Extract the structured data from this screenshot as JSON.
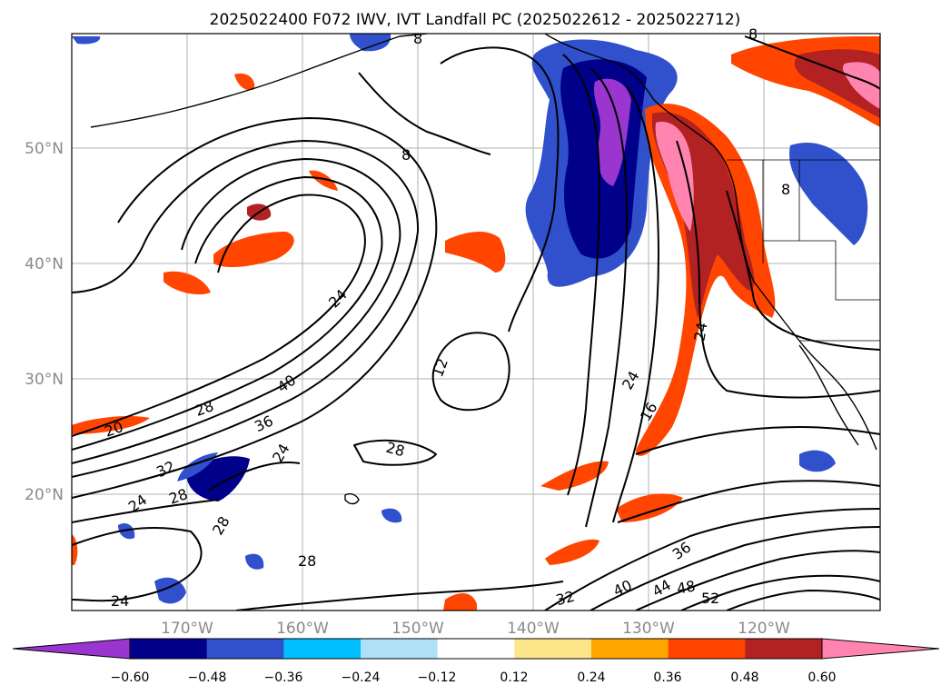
{
  "title": "2025022400 F072 IWV, IVT Landfall PC (2025022612 - 2025022712)",
  "map": {
    "lat_labels": [
      "50°N",
      "40°N",
      "30°N",
      "20°N"
    ],
    "lon_labels": [
      "170°W",
      "160°W",
      "150°W",
      "140°W",
      "130°W",
      "120°W"
    ],
    "contour_labels": [
      "8",
      "8",
      "8",
      "12",
      "16",
      "24",
      "24",
      "24",
      "24",
      "28",
      "28",
      "28",
      "28",
      "28",
      "32",
      "32",
      "36",
      "36",
      "40",
      "40",
      "44",
      "48",
      "52",
      "24",
      "20",
      "8",
      "24"
    ],
    "shading_colors": {
      "neg_060_below": "#9a35d0",
      "neg_048": "#00008b",
      "neg_036": "#3050cc",
      "neg_024": "#00bfff",
      "neg_012": "#aee0f8",
      "pos_012": "#fde68a",
      "pos_024": "#ffa500",
      "pos_036": "#ff4500",
      "pos_048": "#b22222",
      "pos_060_above": "#ff85b0"
    }
  },
  "colorbar": {
    "ticks": [
      "−0.60",
      "−0.48",
      "−0.36",
      "−0.24",
      "−0.12",
      "0.12",
      "0.24",
      "0.36",
      "0.48",
      "0.60"
    ],
    "colors": [
      "#9a35d0",
      "#00008b",
      "#3050cc",
      "#00bfff",
      "#aee0f8",
      "#ffffff",
      "#fde68a",
      "#ffa500",
      "#ff4500",
      "#b22222",
      "#ff85b0"
    ]
  }
}
